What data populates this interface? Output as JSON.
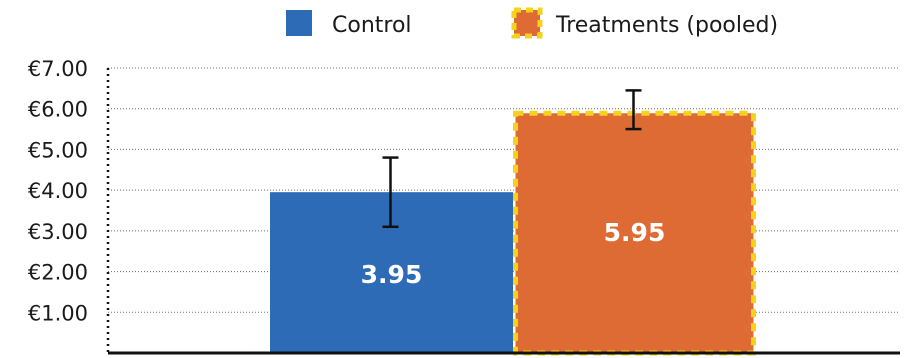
{
  "chart_data": {
    "type": "bar",
    "title": "",
    "xlabel": "",
    "ylabel": "",
    "categories": [
      "Control",
      "Treatments (pooled)"
    ],
    "series": [
      {
        "name": "Control",
        "value": 3.95,
        "error_low": 3.1,
        "error_high": 4.8,
        "label": "3.95",
        "color": "#2d6bb7",
        "style": "solid"
      },
      {
        "name": "Treatments (pooled)",
        "value": 5.95,
        "error_low": 5.5,
        "error_high": 6.45,
        "label": "5.95",
        "color": "#df6b34",
        "border_color": "#f6d11d",
        "style": "dashed-border"
      }
    ],
    "ylim": [
      0,
      7
    ],
    "yticks": [
      1,
      2,
      3,
      4,
      5,
      6,
      7
    ],
    "ytick_labels": [
      "€1.00",
      "€2.00",
      "€3.00",
      "€4.00",
      "€5.00",
      "€6.00",
      "€7.00"
    ],
    "grid": "horizontal dotted",
    "legend_position": "top"
  }
}
